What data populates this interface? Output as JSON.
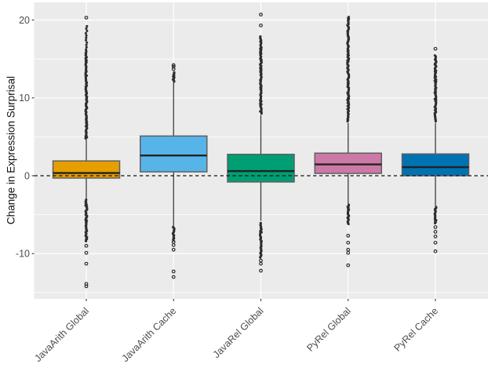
{
  "figure": {
    "background": "#FFFFFF",
    "panel_background": "#EBEBEB",
    "grid_color": "#FFFFFF",
    "tick_color": "#333333",
    "tick_label_color": "#4D4D4D",
    "axis_title_color": "#111111",
    "box_border_color": "#5F5F5F",
    "median_color": "#222222",
    "whisker_color": "#3A3A3A",
    "outlier_color": "#2D2D2D",
    "reference_line_color": "#111111"
  },
  "chart_data": {
    "type": "boxplot",
    "title": "",
    "xlabel": "",
    "ylabel": "Change in Expression Surprisal",
    "grid": true,
    "legend": "none",
    "reference_line_y": 0,
    "reference_line_style": "dashed",
    "y_axis": {
      "major_ticks": [
        -10,
        0,
        10,
        20
      ],
      "minor_gridlines": [
        -15,
        -5,
        5,
        15
      ],
      "ylim": [
        -15.8,
        22.2
      ]
    },
    "categories": [
      "JavaArith Global",
      "JavaArith Cache",
      "JavaRel Global",
      "PyRel Global",
      "PyRel Cache"
    ],
    "series": [
      {
        "name": "JavaArith Global",
        "fill": "#E69F00",
        "q1": -0.3,
        "median": 0.35,
        "q3": 1.9,
        "whisker_low": -2.9,
        "whisker_high": 4.7,
        "outlier_clusters": [
          {
            "from": 4.8,
            "to": 16.0,
            "density": "dense"
          },
          {
            "from": 16.2,
            "to": 19.5,
            "density": "medium"
          },
          {
            "from": -3.0,
            "to": -8.4,
            "density": "dense"
          }
        ],
        "outlier_points": [
          20.3,
          -9.0,
          -9.9,
          -11.3,
          -13.9,
          -14.2
        ]
      },
      {
        "name": "JavaArith Cache",
        "fill": "#56B4E9",
        "q1": 0.5,
        "median": 2.6,
        "q3": 5.1,
        "whisker_low": -6.5,
        "whisker_high": 12.0,
        "outlier_clusters": [
          {
            "from": 12.1,
            "to": 13.4,
            "density": "dense"
          },
          {
            "from": -6.6,
            "to": -8.3,
            "density": "dense"
          }
        ],
        "outlier_points": [
          13.7,
          14.0,
          14.2,
          -8.5,
          -8.9,
          -9.5,
          -12.3,
          -13.0
        ]
      },
      {
        "name": "JavaRel Global",
        "fill": "#009E73",
        "q1": -0.8,
        "median": 0.6,
        "q3": 2.75,
        "whisker_low": -5.8,
        "whisker_high": 7.8,
        "outlier_clusters": [
          {
            "from": 8.0,
            "to": 18.0,
            "density": "dense"
          },
          {
            "from": -6.0,
            "to": -10.5,
            "density": "dense"
          }
        ],
        "outlier_points": [
          19.3,
          20.7,
          -10.9,
          -11.3,
          -12.2
        ]
      },
      {
        "name": "PyRel Global",
        "fill": "#CC79A7",
        "q1": 0.3,
        "median": 1.45,
        "q3": 2.9,
        "whisker_low": -3.6,
        "whisker_high": 6.8,
        "outlier_clusters": [
          {
            "from": 7.0,
            "to": 20.5,
            "density": "dense"
          },
          {
            "from": -3.7,
            "to": -6.2,
            "density": "dense"
          }
        ],
        "outlier_points": [
          -7.7,
          -8.6,
          -9.5,
          -9.9,
          -11.5
        ]
      },
      {
        "name": "PyRel Cache",
        "fill": "#0072B2",
        "q1": 0.0,
        "median": 1.1,
        "q3": 2.8,
        "whisker_low": -3.9,
        "whisker_high": 6.8,
        "outlier_clusters": [
          {
            "from": 7.0,
            "to": 15.5,
            "density": "dense"
          },
          {
            "from": -4.0,
            "to": -6.1,
            "density": "dense"
          }
        ],
        "outlier_points": [
          16.3,
          -6.6,
          -7.2,
          -7.8,
          -8.6,
          -9.7
        ]
      }
    ]
  }
}
